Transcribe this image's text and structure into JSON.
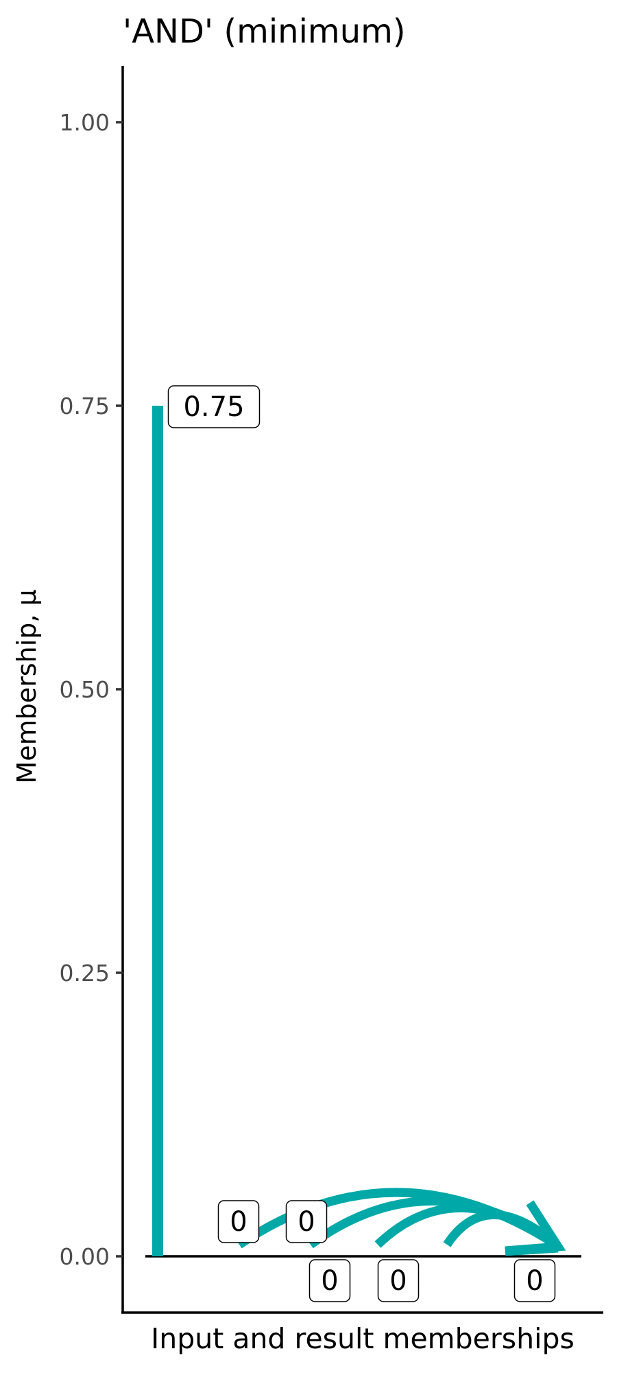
{
  "chart_data": {
    "type": "bar",
    "title": "'AND' (minimum)",
    "xlabel": "Input and result memberships",
    "ylabel": "Membership, μ",
    "ylim": [
      -0.05,
      1.05
    ],
    "yticks": [
      "0.00",
      "0.25",
      "0.50",
      "0.75",
      "1.00"
    ],
    "ytick_values": [
      0,
      0.25,
      0.5,
      0.75,
      1
    ],
    "grid": false,
    "inputs": [
      {
        "value": 0.75,
        "label": "0.75"
      },
      {
        "value": 0,
        "label": "0"
      },
      {
        "value": 0,
        "label": "0"
      },
      {
        "value": 0,
        "label": "0"
      },
      {
        "value": 0,
        "label": "0"
      }
    ],
    "result": {
      "value": 0,
      "label": "0"
    },
    "color": "#00A9A8"
  }
}
